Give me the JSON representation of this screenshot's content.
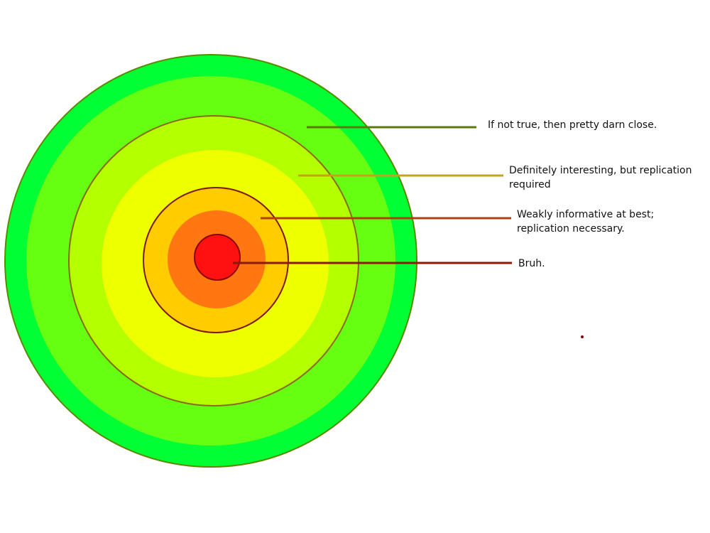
{
  "diagram": {
    "rings": [
      {
        "name": "outer-green-ring",
        "color": "#00ff33",
        "border": "#5a8a00"
      },
      {
        "name": "light-green-ring",
        "color": "#66ff11"
      },
      {
        "name": "yellow-green-ring",
        "color": "#b4ff00",
        "border": "#8a6a1a"
      },
      {
        "name": "yellow-ring",
        "color": "#eeff00"
      },
      {
        "name": "gold-ring",
        "color": "#ffcc00",
        "border": "#7a1a00"
      },
      {
        "name": "orange-ring",
        "color": "#ff7711"
      },
      {
        "name": "red-core",
        "color": "#ff1111",
        "border": "#8a0000"
      }
    ],
    "annotations": [
      {
        "text": "If not true, then pretty darn close.",
        "line_color": "#5a7a10"
      },
      {
        "text": "Definitely interesting, but replication required",
        "line_color": "#c8a020"
      },
      {
        "text": "Weakly informative at best; replication necessary.",
        "line_color": "#b04010"
      },
      {
        "text": "Bruh.",
        "line_color": "#8a1a00"
      }
    ],
    "stray_dot_color": "#8a0000"
  }
}
